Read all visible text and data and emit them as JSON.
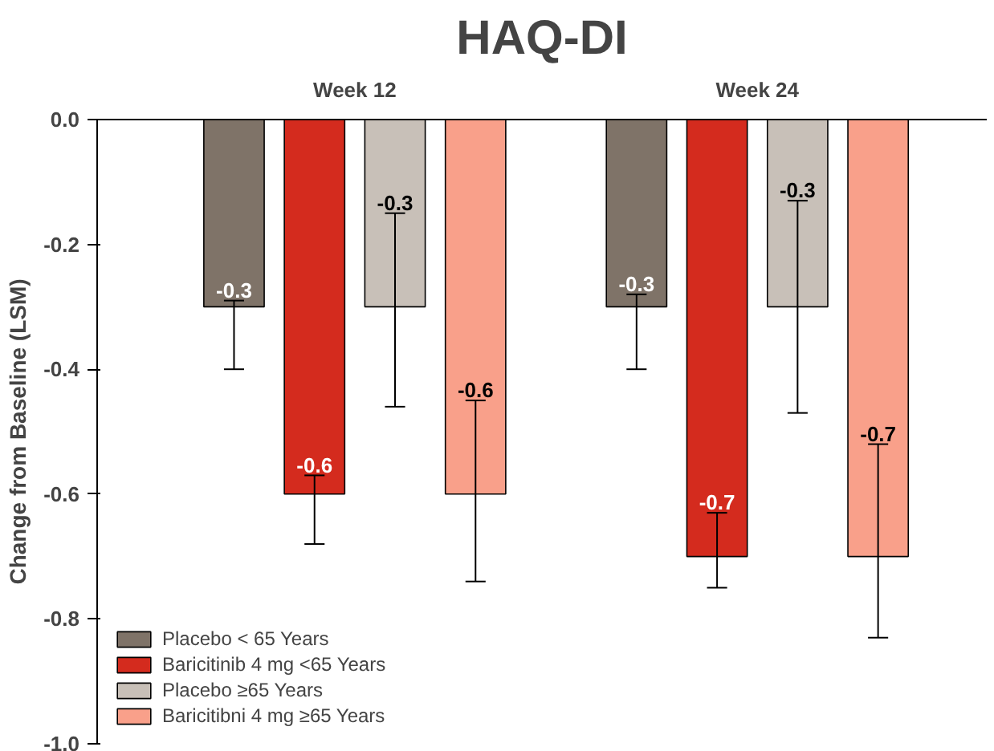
{
  "chart_data": {
    "type": "bar",
    "title": "HAQ-DI",
    "ylabel": "Change from Baseline (LSM)",
    "categories": [
      "Week 12",
      "Week 24"
    ],
    "series": [
      {
        "name": "Placebo < 65 Years",
        "color": "#7f7368",
        "values": [
          -0.3,
          -0.3
        ],
        "errors": [
          [
            -0.4,
            -0.29
          ],
          [
            -0.4,
            -0.28
          ]
        ]
      },
      {
        "name": "Baricitinib 4 mg <65 Years",
        "color": "#d42b1e",
        "values": [
          -0.6,
          -0.7
        ],
        "errors": [
          [
            -0.68,
            -0.57
          ],
          [
            -0.75,
            -0.63
          ]
        ]
      },
      {
        "name": "Placebo ≥65 Years",
        "color": "#c8c0b8",
        "values": [
          -0.3,
          -0.3
        ],
        "errors": [
          [
            -0.46,
            -0.15
          ],
          [
            -0.47,
            -0.13
          ]
        ]
      },
      {
        "name": "Baricitibni 4 mg ≥65 Years",
        "color": "#f9a08a",
        "values": [
          -0.6,
          -0.7
        ],
        "errors": [
          [
            -0.74,
            -0.45
          ],
          [
            -0.83,
            -0.52
          ]
        ]
      }
    ],
    "ylim": [
      -1.0,
      0.0
    ],
    "yticks": [
      {
        "value": -1.0,
        "label": "-1.0"
      },
      {
        "value": -0.8,
        "label": "-0.8"
      },
      {
        "value": -0.6,
        "label": "-0.6"
      },
      {
        "value": -0.4,
        "label": "-0.4"
      },
      {
        "value": -0.2,
        "label": "-0.2"
      },
      {
        "value": 0.0,
        "label": "0.0"
      }
    ],
    "data_labels": true,
    "legend": "bottom left",
    "grid": false
  }
}
